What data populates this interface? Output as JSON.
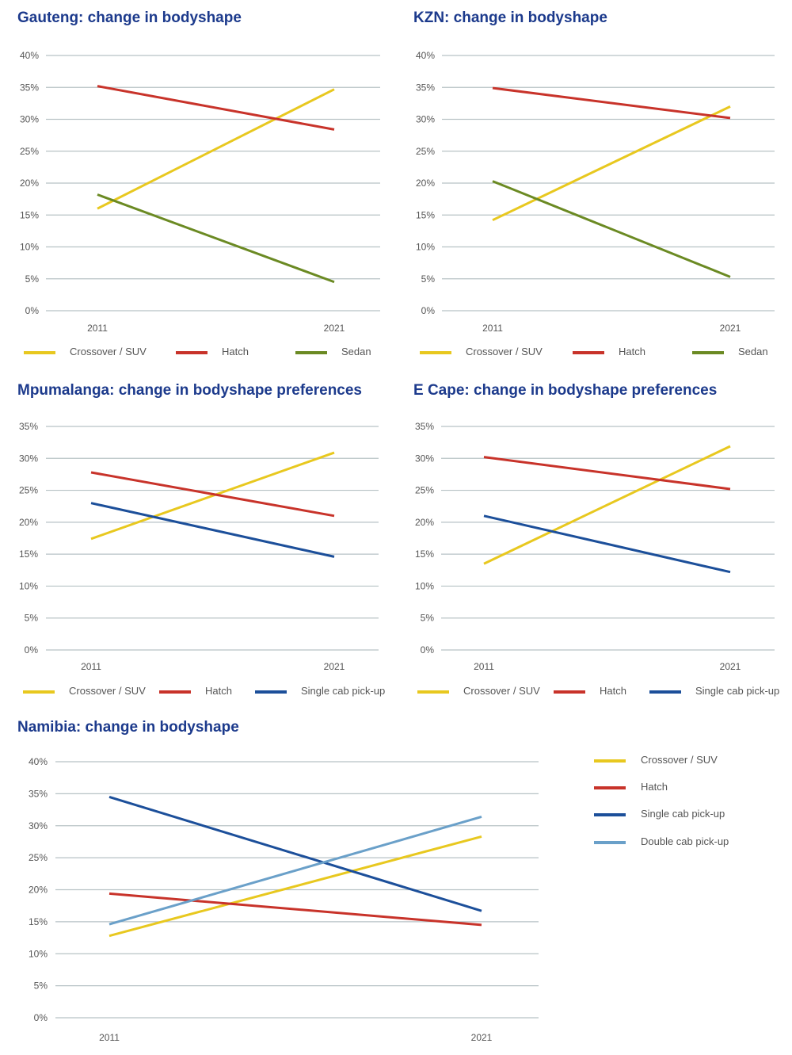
{
  "colors": {
    "title": "#1c3a8c",
    "crossover": "#e8c81f",
    "hatch": "#c8332a",
    "sedan": "#6b8a23",
    "single_cab": "#1c4f9a",
    "double_cab": "#6aa0c9",
    "grid": "#b7c2c5",
    "tick_text": "#555555"
  },
  "chart_data": [
    {
      "type": "line",
      "title": "Gauteng: change in bodyshape",
      "x": [
        "2011",
        "2021"
      ],
      "ylim": [
        0,
        40
      ],
      "yticks": [
        "0%",
        "5%",
        "10%",
        "15%",
        "20%",
        "25%",
        "30%",
        "35%",
        "40%"
      ],
      "grid": true,
      "legend_position": "bottom",
      "series": [
        {
          "name": "Crossover / SUV",
          "color": "#e8c81f",
          "values": [
            16,
            34.7
          ]
        },
        {
          "name": "Hatch",
          "color": "#c8332a",
          "values": [
            35.2,
            28.4
          ]
        },
        {
          "name": "Sedan",
          "color": "#6b8a23",
          "values": [
            18.2,
            4.5
          ]
        }
      ]
    },
    {
      "type": "line",
      "title": "KZN: change in bodyshape",
      "x": [
        "2011",
        "2021"
      ],
      "ylim": [
        0,
        40
      ],
      "yticks": [
        "0%",
        "5%",
        "10%",
        "15%",
        "20%",
        "25%",
        "30%",
        "35%",
        "40%"
      ],
      "grid": true,
      "legend_position": "bottom",
      "series": [
        {
          "name": "Crossover / SUV",
          "color": "#e8c81f",
          "values": [
            14.2,
            32
          ]
        },
        {
          "name": "Hatch",
          "color": "#c8332a",
          "values": [
            34.9,
            30.2
          ]
        },
        {
          "name": "Sedan",
          "color": "#6b8a23",
          "values": [
            20.3,
            5.3
          ]
        }
      ]
    },
    {
      "type": "line",
      "title": "Mpumalanga: change in bodyshape preferences",
      "x": [
        "2011",
        "2021"
      ],
      "ylim": [
        0,
        35
      ],
      "yticks": [
        "0%",
        "5%",
        "10%",
        "15%",
        "20%",
        "25%",
        "30%",
        "35%"
      ],
      "grid": true,
      "legend_position": "bottom",
      "series": [
        {
          "name": "Crossover / SUV",
          "color": "#e8c81f",
          "values": [
            17.4,
            30.9
          ]
        },
        {
          "name": "Hatch",
          "color": "#c8332a",
          "values": [
            27.8,
            21
          ]
        },
        {
          "name": "Single cab pick-up",
          "color": "#1c4f9a",
          "values": [
            23,
            14.6
          ]
        }
      ]
    },
    {
      "type": "line",
      "title": "E Cape: change in bodyshape preferences",
      "x": [
        "2011",
        "2021"
      ],
      "ylim": [
        0,
        35
      ],
      "yticks": [
        "0%",
        "5%",
        "10%",
        "15%",
        "20%",
        "25%",
        "30%",
        "35%"
      ],
      "grid": true,
      "legend_position": "bottom",
      "series": [
        {
          "name": "Crossover / SUV",
          "color": "#e8c81f",
          "values": [
            13.5,
            31.9
          ]
        },
        {
          "name": "Hatch",
          "color": "#c8332a",
          "values": [
            30.2,
            25.2
          ]
        },
        {
          "name": "Single cab pick-up",
          "color": "#1c4f9a",
          "values": [
            21,
            12.2
          ]
        }
      ]
    },
    {
      "type": "line",
      "title": "Namibia: change in bodyshape",
      "x": [
        "2011",
        "2021"
      ],
      "ylim": [
        0,
        40
      ],
      "yticks": [
        "0%",
        "5%",
        "10%",
        "15%",
        "20%",
        "25%",
        "30%",
        "35%",
        "40%"
      ],
      "grid": true,
      "legend_position": "right",
      "series": [
        {
          "name": "Crossover / SUV",
          "color": "#e8c81f",
          "values": [
            12.8,
            28.3
          ]
        },
        {
          "name": "Hatch",
          "color": "#c8332a",
          "values": [
            19.4,
            14.5
          ]
        },
        {
          "name": "Single cab pick-up",
          "color": "#1c4f9a",
          "values": [
            34.5,
            16.7
          ]
        },
        {
          "name": "Double cab pick-up",
          "color": "#6aa0c9",
          "values": [
            14.6,
            31.4
          ]
        }
      ]
    }
  ]
}
